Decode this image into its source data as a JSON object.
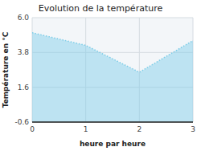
{
  "chart_data": {
    "type": "area",
    "title": "Evolution de la température",
    "x_label": "heure par heure",
    "y_label": "Température en °C",
    "x": [
      0,
      1,
      2,
      3
    ],
    "values": [
      5.05,
      4.25,
      2.55,
      4.55
    ],
    "xlim": [
      0,
      3
    ],
    "ylim": [
      -0.6,
      6.0
    ],
    "xticks": [
      0,
      1,
      2,
      3
    ],
    "yticks": [
      -0.6,
      1.6,
      3.8,
      {
        "value": 6.0,
        "label": "6.0"
      }
    ],
    "color": "#7dcde8",
    "line_style": "dotted",
    "grid": true
  }
}
